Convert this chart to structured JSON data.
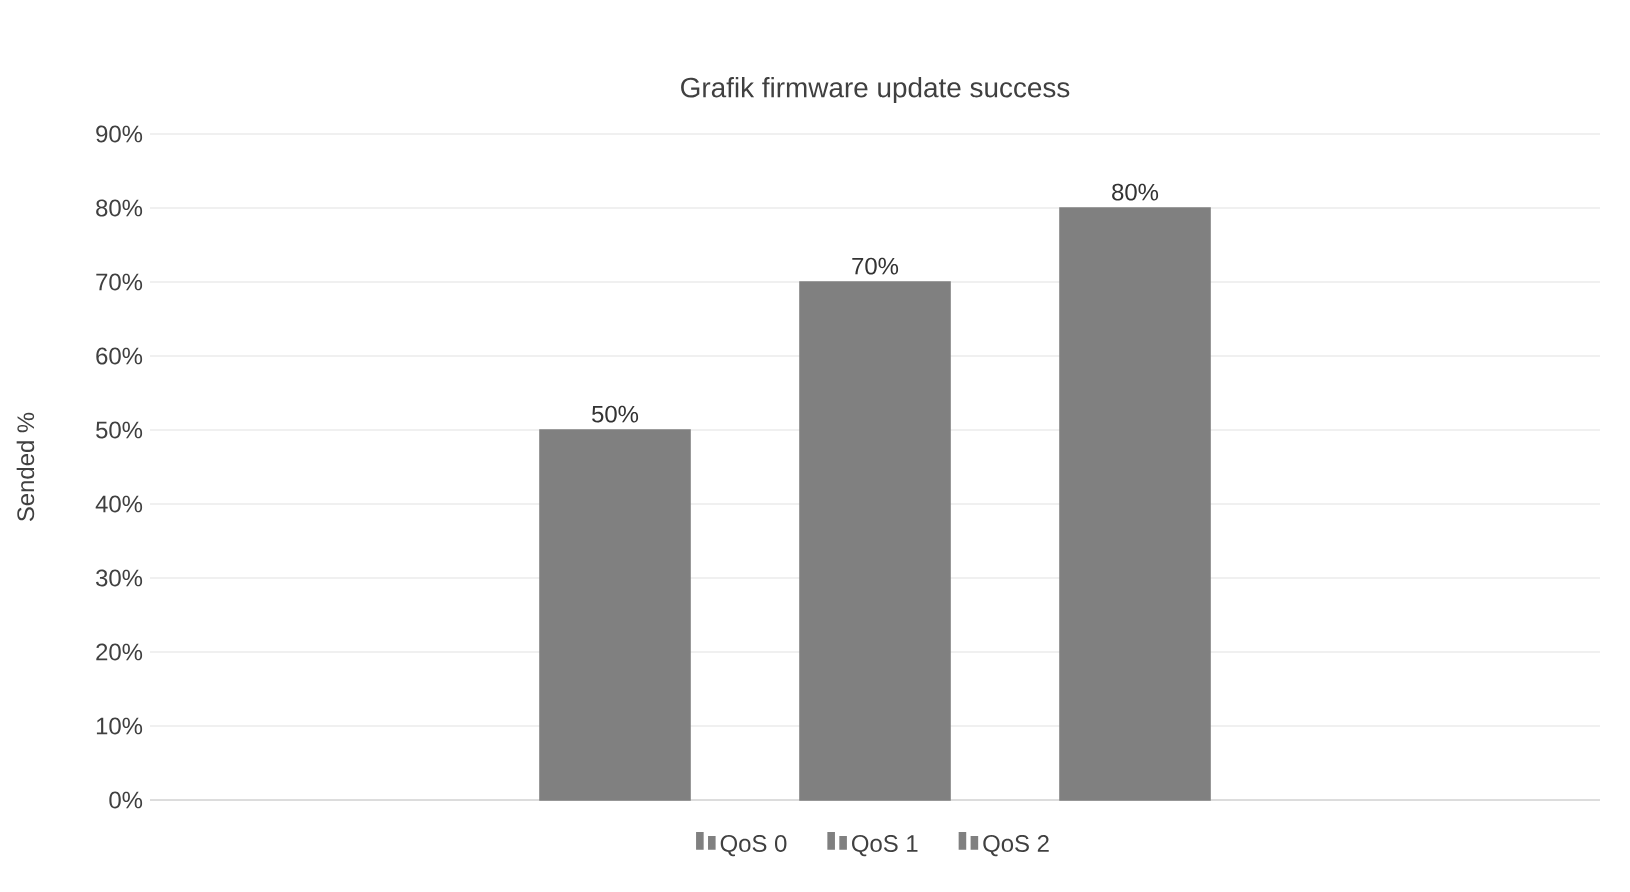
{
  "chart_data": {
    "type": "bar",
    "title": "Grafik firmware update success",
    "ylabel": "Sended %",
    "categories": [
      null
    ],
    "series": [
      {
        "name": "QoS 0",
        "color": "#808080",
        "values": [
          50
        ],
        "value_labels": [
          "50%"
        ]
      },
      {
        "name": "QoS 1",
        "color": "#808080",
        "values": [
          70
        ],
        "value_labels": [
          "70%"
        ]
      },
      {
        "name": "QoS 2",
        "color": "#808080",
        "values": [
          80
        ],
        "value_labels": [
          "80%"
        ]
      }
    ],
    "ylim": [
      0,
      90
    ],
    "yticks": [
      {
        "value": 0,
        "label": "0%"
      },
      {
        "value": 10,
        "label": "10%"
      },
      {
        "value": 20,
        "label": "20%"
      },
      {
        "value": 30,
        "label": "30%"
      },
      {
        "value": 40,
        "label": "40%"
      },
      {
        "value": 50,
        "label": "50%"
      },
      {
        "value": 60,
        "label": "60%"
      },
      {
        "value": 70,
        "label": "70%"
      },
      {
        "value": 80,
        "label": "80%"
      },
      {
        "value": 90,
        "label": "90%"
      }
    ],
    "grid": "y",
    "legend": "bottom"
  }
}
